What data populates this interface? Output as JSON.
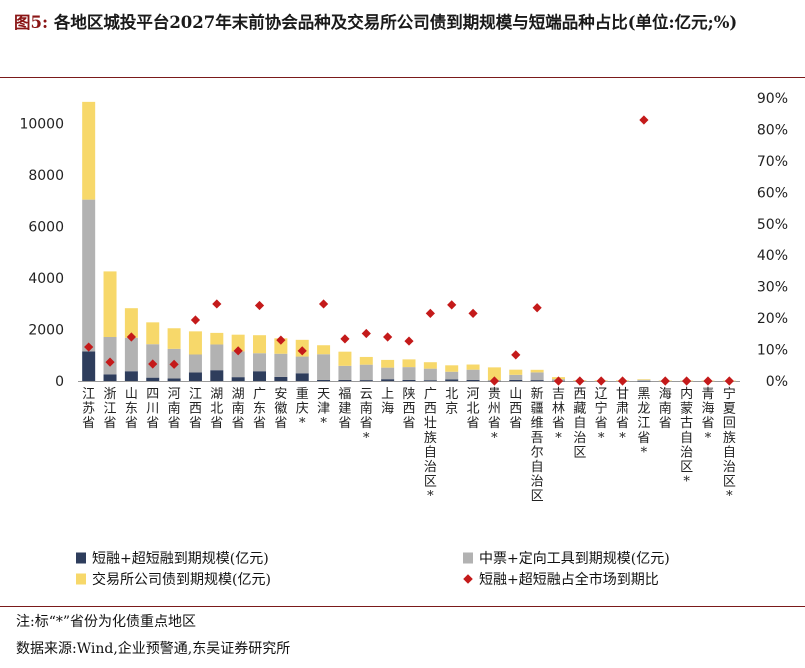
{
  "title_prefix": "图5:",
  "title": "各地区城投平台2027年末前协会品种及交易所公司债到期规模与短端品种占比(单位:亿元;%)",
  "footnote": "注:标“*”省份为化债重点地区",
  "source": "数据来源:Wind,企业预警通,东吴证券研究所",
  "chart_data": {
    "type": "bar",
    "stacked": true,
    "categories": [
      "江苏省",
      "浙江省",
      "山东省",
      "四川省",
      "河南省",
      "江西省",
      "湖北省",
      "湖南省",
      "广东省",
      "安徽省",
      "重庆*",
      "天津*",
      "福建省",
      "云南省*",
      "上海",
      "陕西省",
      "广西壮族自治区*",
      "北京",
      "河北省",
      "贵州省*",
      "山西省",
      "新疆维吾尔自治区",
      "吉林省*",
      "西藏自治区",
      "辽宁省*",
      "甘肃省*",
      "黑龙江省*",
      "海南省",
      "内蒙古自治区*",
      "青海省*",
      "宁夏回族自治区*"
    ],
    "series": [
      {
        "name": "短融+超短融到期规模(亿元)",
        "color": "#2e3d5c",
        "axis": "left",
        "values": [
          1150,
          260,
          380,
          130,
          100,
          330,
          420,
          150,
          380,
          160,
          300,
          40,
          40,
          35,
          70,
          40,
          30,
          60,
          40,
          15,
          40,
          35,
          10,
          0,
          0,
          0,
          5,
          0,
          0,
          0,
          0
        ]
      },
      {
        "name": "中票+定向工具到期规模(亿元)",
        "color": "#b2b2b2",
        "axis": "left",
        "values": [
          5900,
          1450,
          1300,
          1300,
          1150,
          700,
          1000,
          1000,
          700,
          900,
          650,
          1000,
          550,
          600,
          450,
          500,
          450,
          300,
          400,
          15,
          200,
          300,
          60,
          10,
          5,
          5,
          55,
          10,
          5,
          5,
          5
        ]
      },
      {
        "name": "交易所公司债到期规模(亿元)",
        "color": "#f7d86a",
        "axis": "left",
        "values": [
          3800,
          2550,
          1150,
          850,
          800,
          900,
          450,
          650,
          700,
          600,
          650,
          350,
          550,
          300,
          300,
          300,
          250,
          250,
          200,
          500,
          200,
          100,
          80,
          20,
          20,
          20,
          5,
          10,
          10,
          10,
          10
        ]
      },
      {
        "name": "短融+超短融占全市场到期比",
        "color": "#c41a1a",
        "axis": "right",
        "marker": "diamond",
        "values": [
          10.8,
          6.0,
          14.0,
          5.4,
          5.3,
          19.4,
          24.5,
          9.6,
          24.0,
          13.0,
          9.6,
          24.5,
          13.4,
          15.1,
          14.0,
          12.7,
          21.5,
          24.2,
          21.5,
          0,
          8.3,
          23.3,
          0,
          0,
          0,
          0,
          83,
          0,
          0,
          0,
          0
        ]
      }
    ],
    "y_left": {
      "min": 0,
      "max": 11000,
      "ticks": [
        0,
        2000,
        4000,
        6000,
        8000,
        10000
      ]
    },
    "y_right": {
      "min": 0,
      "max": 90,
      "ticks": [
        0,
        10,
        20,
        30,
        40,
        50,
        60,
        70,
        80,
        90
      ],
      "unit": "%"
    },
    "grid": false,
    "legend_position": "bottom"
  }
}
